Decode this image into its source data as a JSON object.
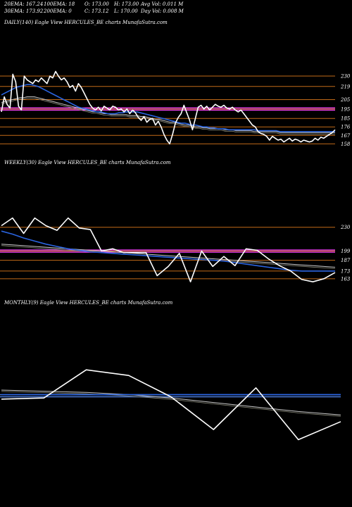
{
  "header": {
    "ema20": "20EMA: 167.24",
    "ema100": "100EMA: 18",
    "open": "O: 173.00",
    "high": "H: 173.00",
    "avg_vol": "Avg Vol: 0.011 M",
    "ema30": "30EMA: 173.92",
    "ema200": "200EMA: 0",
    "close": "C: 173.12",
    "low": "L: 170.00",
    "day_vol": "Day Vol: 0.008  M"
  },
  "colors": {
    "background": "#000000",
    "price": "#ffffff",
    "ema_fast": "#2a64e0",
    "ema_slow": "#c8c8c8",
    "level_line": "#c26a18",
    "highlight": "#ff44ff"
  },
  "chart_data": [
    {
      "type": "line",
      "title": "DAILY(140) Eagle  View  HERCULES_BE charts MunafaSutra.com",
      "grid": false,
      "y_ticks": [
        "230",
        "219",
        "205",
        "195",
        "185",
        "176",
        "167",
        "158"
      ],
      "ylim": [
        150,
        245
      ],
      "highlight_level": 195,
      "series": [
        {
          "name": "price",
          "values": [
            192,
            208,
            200,
            196,
            232,
            224,
            198,
            194,
            230,
            226,
            224,
            222,
            226,
            224,
            228,
            225,
            222,
            230,
            228,
            235,
            230,
            226,
            228,
            224,
            218,
            220,
            214,
            222,
            218,
            212,
            206,
            200,
            196,
            194,
            197,
            193,
            198,
            196,
            194,
            198,
            197,
            194,
            195,
            192,
            195,
            190,
            194,
            191,
            186,
            183,
            187,
            181,
            184,
            185,
            178,
            182,
            176,
            168,
            162,
            158,
            168,
            180,
            186,
            190,
            199,
            191,
            183,
            173,
            185,
            197,
            199,
            195,
            198,
            194,
            197,
            200,
            198,
            197,
            199,
            196,
            195,
            197,
            194,
            192,
            194,
            190,
            186,
            182,
            178,
            176,
            171,
            169,
            168,
            166,
            162,
            166,
            164,
            162,
            163,
            160,
            162,
            164,
            161,
            163,
            162,
            160,
            162,
            161,
            160,
            161,
            164,
            162,
            165,
            164,
            166,
            168,
            170,
            173
          ]
        },
        {
          "name": "ema_fast",
          "values": [
            210,
            212,
            214,
            216,
            218,
            219,
            220,
            221,
            221,
            220,
            219,
            217,
            215,
            213,
            211,
            209,
            207,
            205,
            203,
            201,
            199,
            197,
            196,
            195,
            194,
            193,
            192,
            192,
            191,
            190,
            190,
            190,
            191,
            191,
            192,
            192,
            192,
            192,
            191,
            190,
            189,
            188,
            187,
            186,
            185,
            184,
            183,
            182,
            181,
            180,
            180,
            179,
            178,
            178,
            177,
            176,
            176,
            175,
            175,
            174,
            174,
            174,
            173,
            173,
            173,
            173,
            173,
            173,
            173,
            173,
            172,
            172,
            172,
            172,
            172,
            172,
            171,
            171,
            171,
            171,
            171,
            171,
            171,
            171,
            171,
            171,
            171,
            171,
            171,
            171,
            171,
            171
          ]
        },
        {
          "name": "ema_slow",
          "values": [
            202,
            203,
            204,
            205,
            206,
            207,
            207,
            208,
            208,
            208,
            207,
            206,
            205,
            204,
            203,
            202,
            201,
            200,
            199,
            198,
            197,
            196,
            195,
            194,
            193,
            192,
            192,
            191,
            190,
            190,
            189,
            189,
            189,
            189,
            189,
            188,
            188,
            188,
            187,
            187,
            186,
            185,
            184,
            184,
            183,
            182,
            181,
            181,
            180,
            179,
            178,
            178,
            177,
            176,
            176,
            175,
            175,
            174,
            174,
            174,
            174,
            173,
            173,
            173,
            172,
            172,
            172,
            172,
            172,
            171,
            171,
            171,
            171,
            171,
            171,
            171,
            170,
            170,
            170,
            170,
            170,
            170,
            170,
            170,
            170,
            170,
            170,
            170,
            170,
            170,
            170,
            170
          ]
        }
      ]
    },
    {
      "type": "line",
      "title": "WEEKLY(30) Eagle  View  HERCULES_BE charts MunafaSutra.com",
      "grid": false,
      "y_ticks": [
        "230",
        "199",
        "187",
        "173",
        "163"
      ],
      "ylim": [
        150,
        260
      ],
      "highlight_level": 199,
      "series": [
        {
          "name": "price",
          "values": [
            232,
            242,
            222,
            242,
            232,
            226,
            242,
            229,
            227,
            199,
            202,
            197,
            197,
            197,
            167,
            179,
            196,
            159,
            199,
            179,
            192,
            180,
            202,
            200,
            189,
            180,
            173,
            162,
            159,
            163,
            171
          ]
        },
        {
          "name": "ema_fast",
          "values": [
            225,
            221,
            216,
            212,
            208,
            205,
            202,
            200,
            198,
            197,
            196,
            195,
            194,
            193,
            192,
            191,
            190,
            189,
            188,
            187,
            186,
            184,
            182,
            180,
            178,
            176,
            174,
            173,
            173,
            173,
            173
          ]
        },
        {
          "name": "ema_slow",
          "values": [
            208,
            207,
            206,
            205,
            204,
            203,
            202,
            201,
            200,
            199,
            198,
            197,
            196,
            195,
            194,
            193,
            192,
            191,
            190,
            189,
            188,
            187,
            186,
            185,
            184,
            183,
            182,
            181,
            180,
            179,
            178
          ]
        }
      ]
    },
    {
      "type": "line",
      "title": "MONTHLY(9) Eagle  View  HERCULES_BE charts MunafaSutra.com",
      "grid": false,
      "y_ticks": [],
      "ylim": [
        0,
        100
      ],
      "highlight_level": 55,
      "series": [
        {
          "name": "price",
          "values": [
            52,
            53,
            78,
            73,
            54,
            25,
            62,
            16,
            32
          ]
        },
        {
          "name": "ema_fast",
          "values": [
            56,
            56,
            56,
            56,
            56,
            56,
            56,
            56,
            56
          ]
        },
        {
          "name": "ema_slow",
          "values": [
            60,
            59,
            58,
            56,
            53,
            49,
            45,
            41,
            38
          ]
        }
      ]
    }
  ]
}
